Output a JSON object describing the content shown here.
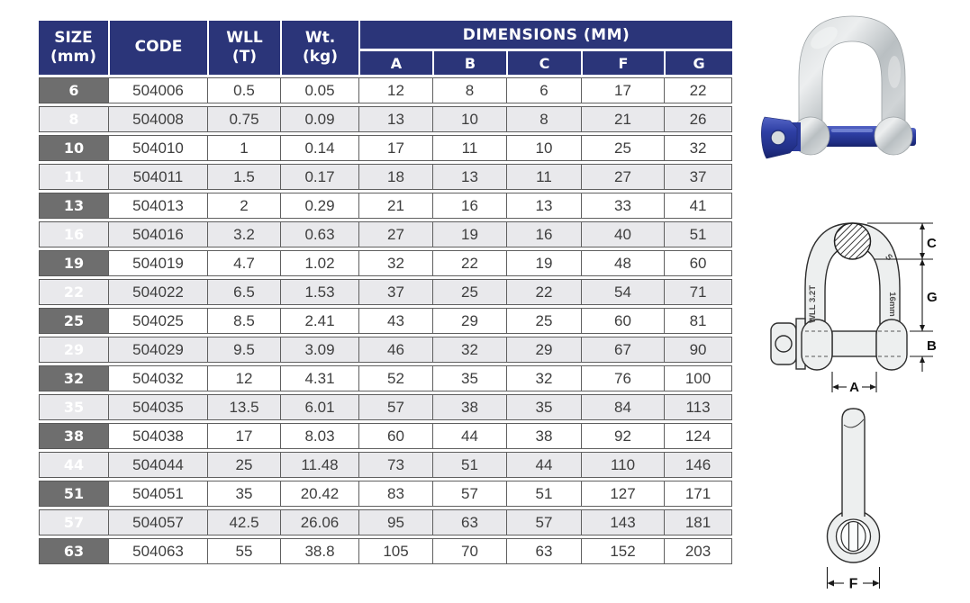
{
  "colors": {
    "header_navy": "#2B3579",
    "size_cell_gray": "#6E6E6E",
    "row_stripe": "#E9E9EC",
    "border_gray": "#5F5F5F",
    "pin_blue": "#2E3FA4",
    "metal_gray": "#C8CDCF"
  },
  "table": {
    "header": {
      "size_l1": "SIZE",
      "size_l2": "(mm)",
      "code": "CODE",
      "wll_l1": "WLL",
      "wll_l2": "(T)",
      "wt_l1": "Wt.",
      "wt_l2": "(kg)",
      "dimensions": "DIMENSIONS (MM)",
      "dim_cols": [
        "A",
        "B",
        "C",
        "F",
        "G"
      ]
    },
    "rows": [
      [
        "6",
        "504006",
        "0.5",
        "0.05",
        "12",
        "8",
        "6",
        "17",
        "22"
      ],
      [
        "8",
        "504008",
        "0.75",
        "0.09",
        "13",
        "10",
        "8",
        "21",
        "26"
      ],
      [
        "10",
        "504010",
        "1",
        "0.14",
        "17",
        "11",
        "10",
        "25",
        "32"
      ],
      [
        "11",
        "504011",
        "1.5",
        "0.17",
        "18",
        "13",
        "11",
        "27",
        "37"
      ],
      [
        "13",
        "504013",
        "2",
        "0.29",
        "21",
        "16",
        "13",
        "33",
        "41"
      ],
      [
        "16",
        "504016",
        "3.2",
        "0.63",
        "27",
        "19",
        "16",
        "40",
        "51"
      ],
      [
        "19",
        "504019",
        "4.7",
        "1.02",
        "32",
        "22",
        "19",
        "48",
        "60"
      ],
      [
        "22",
        "504022",
        "6.5",
        "1.53",
        "37",
        "25",
        "22",
        "54",
        "71"
      ],
      [
        "25",
        "504025",
        "8.5",
        "2.41",
        "43",
        "29",
        "25",
        "60",
        "81"
      ],
      [
        "29",
        "504029",
        "9.5",
        "3.09",
        "46",
        "32",
        "29",
        "67",
        "90"
      ],
      [
        "32",
        "504032",
        "12",
        "4.31",
        "52",
        "35",
        "32",
        "76",
        "100"
      ],
      [
        "35",
        "504035",
        "13.5",
        "6.01",
        "57",
        "38",
        "35",
        "84",
        "113"
      ],
      [
        "38",
        "504038",
        "17",
        "8.03",
        "60",
        "44",
        "38",
        "92",
        "124"
      ],
      [
        "44",
        "504044",
        "25",
        "11.48",
        "73",
        "51",
        "44",
        "110",
        "146"
      ],
      [
        "51",
        "504051",
        "35",
        "20.42",
        "83",
        "57",
        "51",
        "127",
        "171"
      ],
      [
        "57",
        "504057",
        "42.5",
        "26.06",
        "95",
        "63",
        "57",
        "143",
        "181"
      ],
      [
        "63",
        "504063",
        "55",
        "38.8",
        "105",
        "70",
        "63",
        "152",
        "203"
      ]
    ]
  },
  "diagram_front": {
    "wll_marking": "WLL 3.2T",
    "size_marking": "16mm",
    "s_marking": "S",
    "dim_c": "C",
    "dim_g": "G",
    "dim_b": "B",
    "dim_a": "A"
  },
  "diagram_side": {
    "dim_f": "F"
  }
}
